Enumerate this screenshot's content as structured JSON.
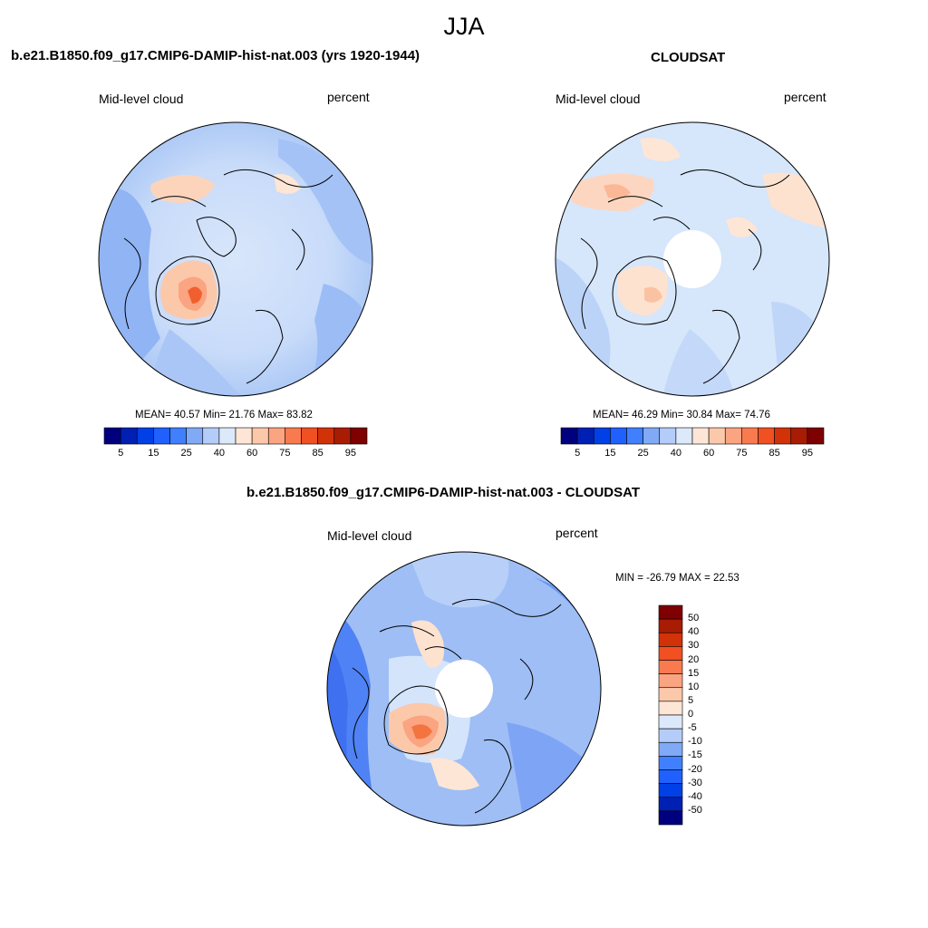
{
  "figure_title": "JJA",
  "panels": [
    {
      "title": "b.e21.B1850.f09_g17.CMIP6-DAMIP-hist-nat.003 (yrs 1920-1944)",
      "left_label": "Mid-level cloud",
      "right_label": "percent",
      "stats": "MEAN=  40.57  Min=  21.76  Max=  83.82",
      "colorbar": {
        "orientation": "horizontal",
        "tick_labels": [
          "5",
          "15",
          "25",
          "40",
          "60",
          "75",
          "85",
          "95"
        ]
      }
    },
    {
      "title": "CLOUDSAT",
      "left_label": "Mid-level cloud",
      "right_label": "percent",
      "stats": "MEAN=  46.29  Min=  30.84  Max=  74.76",
      "colorbar": {
        "orientation": "horizontal",
        "tick_labels": [
          "5",
          "15",
          "25",
          "40",
          "60",
          "75",
          "85",
          "95"
        ]
      }
    },
    {
      "title": "b.e21.B1850.f09_g17.CMIP6-DAMIP-hist-nat.003 - CLOUDSAT",
      "left_label": "Mid-level cloud",
      "right_label": "percent",
      "stats": "MIN = -26.79 MAX =  22.53",
      "colorbar": {
        "orientation": "vertical",
        "tick_labels": [
          "50",
          "40",
          "30",
          "20",
          "15",
          "10",
          "5",
          "0",
          "-5",
          "-10",
          "-15",
          "-20",
          "-30",
          "-40",
          "-50"
        ]
      }
    }
  ],
  "colors": {
    "abs_scale": [
      "#00007f",
      "#0020b3",
      "#0040e6",
      "#2060ff",
      "#4080ff",
      "#80aaf6",
      "#b4ccf8",
      "#dce9fb",
      "#fde6d6",
      "#fcc8aa",
      "#fba481",
      "#fa7a50",
      "#f05022",
      "#d23208",
      "#a81c04",
      "#7e0000"
    ],
    "diff_scale": [
      "#00007f",
      "#0020b3",
      "#0040e6",
      "#2060ff",
      "#4080ff",
      "#80aaf6",
      "#b4ccf8",
      "#dce9fb",
      "#fde6d6",
      "#fcc8aa",
      "#fba481",
      "#fa7a50",
      "#f05022",
      "#d23208",
      "#a81c04",
      "#7e0000"
    ],
    "coastline": "#000000"
  }
}
